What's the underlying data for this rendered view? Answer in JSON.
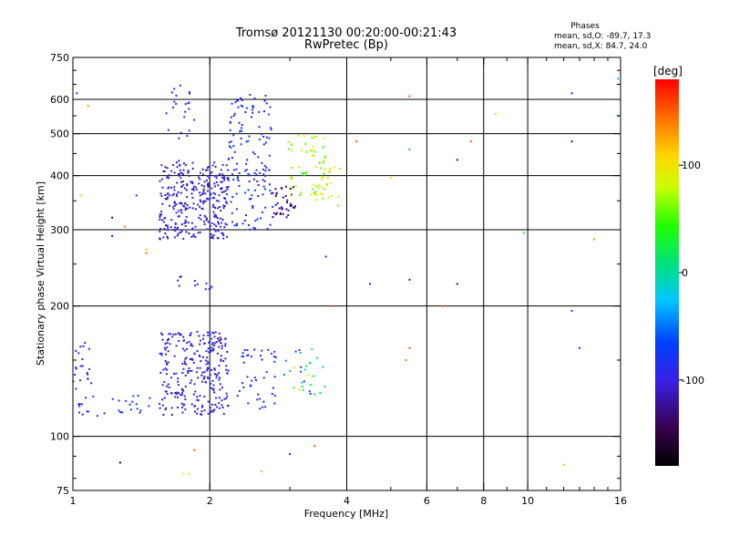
{
  "header": {
    "title": "Tromsø 20121130 00:20:00-00:21:43",
    "subtitle": "RwPretec (Bp)"
  },
  "info": {
    "heading": "Phases",
    "line_o": "mean, sd,O: -89.7, 17.3",
    "line_x": "mean, sd,X:  84.7, 24.0"
  },
  "colorbar": {
    "unit_label": "[deg]",
    "ticks": [
      {
        "value": 100,
        "label": "100"
      },
      {
        "value": 0,
        "label": "0"
      },
      {
        "value": -100,
        "label": "-100"
      }
    ],
    "range": [
      -180,
      180
    ]
  },
  "chart_data": {
    "type": "scatter",
    "xlabel": "Frequency [MHz]",
    "ylabel": "Stationary phase Virtual Height [km]",
    "x_scale": "log",
    "y_scale": "log",
    "xlim": [
      1,
      16
    ],
    "ylim": [
      75,
      750
    ],
    "grid": true,
    "x_ticks": [
      {
        "value": 1,
        "label": "1"
      },
      {
        "value": 2,
        "label": "2"
      },
      {
        "value": 4,
        "label": "4"
      },
      {
        "value": 6,
        "label": "6"
      },
      {
        "value": 8,
        "label": "8"
      },
      {
        "value": 10,
        "label": "10"
      },
      {
        "value": 16,
        "label": "16"
      }
    ],
    "x_minor": [
      3,
      5,
      7,
      9,
      11,
      12,
      13,
      14,
      15
    ],
    "x_grid": [
      2,
      4,
      6,
      8,
      10
    ],
    "y_ticks": [
      {
        "value": 75,
        "label": "75"
      },
      {
        "value": 100,
        "label": "100"
      },
      {
        "value": 200,
        "label": "200"
      },
      {
        "value": 300,
        "label": "300"
      },
      {
        "value": 400,
        "label": "400"
      },
      {
        "value": 500,
        "label": "500"
      },
      {
        "value": 600,
        "label": "600"
      },
      {
        "value": 750,
        "label": "750"
      }
    ],
    "y_minor": [
      80,
      90,
      150,
      250,
      350,
      450,
      550,
      650,
      700
    ],
    "y_grid": [
      100,
      200,
      300,
      400,
      500,
      600
    ],
    "color_dimension": "phase [deg]",
    "clusters": [
      {
        "x_range": [
          1.55,
          2.2
        ],
        "y_range": [
          285,
          430
        ],
        "phase": [
          -120,
          -85
        ],
        "count": 320
      },
      {
        "x_range": [
          2.2,
          2.75
        ],
        "y_range": [
          300,
          620
        ],
        "phase": [
          -110,
          -60
        ],
        "count": 140
      },
      {
        "x_range": [
          1.6,
          1.85
        ],
        "y_range": [
          420,
          650
        ],
        "phase": [
          -110,
          -80
        ],
        "count": 25
      },
      {
        "x_range": [
          2.75,
          3.1
        ],
        "y_range": [
          320,
          380
        ],
        "phase": [
          -150,
          -110
        ],
        "count": 40
      },
      {
        "x_range": [
          2.95,
          3.6
        ],
        "y_range": [
          360,
          500
        ],
        "phase": [
          40,
          120
        ],
        "count": 55
      },
      {
        "x_range": [
          3.4,
          3.9
        ],
        "y_range": [
          340,
          420
        ],
        "phase": [
          60,
          110
        ],
        "count": 25
      },
      {
        "x_range": [
          1.55,
          2.2
        ],
        "y_range": [
          112,
          175
        ],
        "phase": [
          -120,
          -80
        ],
        "count": 280
      },
      {
        "x_range": [
          2.3,
          2.8
        ],
        "y_range": [
          115,
          160
        ],
        "phase": [
          -110,
          -70
        ],
        "count": 45
      },
      {
        "x_range": [
          2.9,
          3.6
        ],
        "y_range": [
          125,
          160
        ],
        "phase": [
          -100,
          100
        ],
        "count": 30
      },
      {
        "x_range": [
          1.0,
          1.1
        ],
        "y_range": [
          110,
          165
        ],
        "phase": [
          -110,
          -80
        ],
        "count": 30
      },
      {
        "x_range": [
          1.1,
          1.5
        ],
        "y_range": [
          110,
          125
        ],
        "phase": [
          -100,
          -60
        ],
        "count": 20
      },
      {
        "x_range": [
          1.7,
          2.05
        ],
        "y_range": [
          218,
          235
        ],
        "phase": [
          -100,
          -90
        ],
        "count": 12
      }
    ],
    "points": [
      {
        "x": 1.08,
        "y": 580,
        "phase": 130
      },
      {
        "x": 1.04,
        "y": 360,
        "phase": 70
      },
      {
        "x": 1.22,
        "y": 320,
        "phase": -150
      },
      {
        "x": 1.3,
        "y": 305,
        "phase": 140
      },
      {
        "x": 1.38,
        "y": 360,
        "phase": -90
      },
      {
        "x": 1.45,
        "y": 265,
        "phase": 150
      },
      {
        "x": 1.45,
        "y": 270,
        "phase": 120
      },
      {
        "x": 1.22,
        "y": 290,
        "phase": -110
      },
      {
        "x": 1.27,
        "y": 87,
        "phase": -170
      },
      {
        "x": 1.75,
        "y": 82,
        "phase": 80
      },
      {
        "x": 1.8,
        "y": 82,
        "phase": 100
      },
      {
        "x": 1.85,
        "y": 93,
        "phase": 150
      },
      {
        "x": 2.6,
        "y": 83,
        "phase": 120
      },
      {
        "x": 3.0,
        "y": 91,
        "phase": -110
      },
      {
        "x": 3.4,
        "y": 95,
        "phase": 150
      },
      {
        "x": 3.6,
        "y": 260,
        "phase": -100
      },
      {
        "x": 3.7,
        "y": 200,
        "phase": 150
      },
      {
        "x": 4.5,
        "y": 225,
        "phase": -100
      },
      {
        "x": 4.2,
        "y": 480,
        "phase": 150
      },
      {
        "x": 5.5,
        "y": 610,
        "phase": 150
      },
      {
        "x": 5.5,
        "y": 460,
        "phase": -40
      },
      {
        "x": 5.5,
        "y": 230,
        "phase": -130
      },
      {
        "x": 5.5,
        "y": 160,
        "phase": 150
      },
      {
        "x": 5.4,
        "y": 150,
        "phase": 140
      },
      {
        "x": 5.0,
        "y": 395,
        "phase": 100
      },
      {
        "x": 6.5,
        "y": 200,
        "phase": 150
      },
      {
        "x": 7.0,
        "y": 225,
        "phase": -130
      },
      {
        "x": 7.0,
        "y": 435,
        "phase": -130
      },
      {
        "x": 7.5,
        "y": 480,
        "phase": 150
      },
      {
        "x": 8.5,
        "y": 555,
        "phase": 110
      },
      {
        "x": 9.8,
        "y": 295,
        "phase": 30
      },
      {
        "x": 12.5,
        "y": 620,
        "phase": -110
      },
      {
        "x": 12.5,
        "y": 480,
        "phase": -130
      },
      {
        "x": 12.5,
        "y": 195,
        "phase": -60
      },
      {
        "x": 13.0,
        "y": 160,
        "phase": -80
      },
      {
        "x": 14.0,
        "y": 285,
        "phase": 130
      },
      {
        "x": 15.8,
        "y": 670,
        "phase": -30
      },
      {
        "x": 15.8,
        "y": 550,
        "phase": -20
      },
      {
        "x": 12.0,
        "y": 86,
        "phase": 120
      },
      {
        "x": 1.02,
        "y": 620,
        "phase": -100
      }
    ]
  }
}
